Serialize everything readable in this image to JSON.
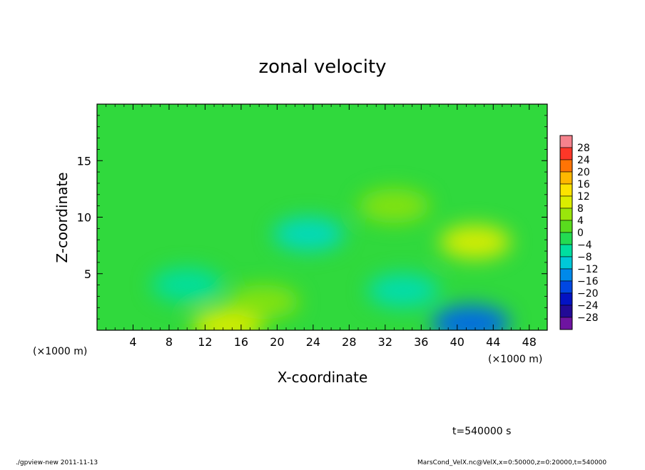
{
  "chart_data": {
    "type": "heatmap",
    "title": "zonal velocity",
    "xlabel": "X-coordinate",
    "ylabel": "Z-coordinate",
    "x_unit": "(×1000 m)",
    "y_unit": "(×1000 m)",
    "xlim": [
      0,
      50
    ],
    "ylim": [
      0,
      20
    ],
    "x_ticks": [
      "4",
      "8",
      "12",
      "16",
      "20",
      "24",
      "28",
      "32",
      "36",
      "40",
      "44",
      "48"
    ],
    "y_ticks": [
      "5",
      "10",
      "15"
    ],
    "colorbar_labels": [
      "28",
      "24",
      "20",
      "16",
      "12",
      "8",
      "4",
      "0",
      "−4",
      "−8",
      "−12",
      "−16",
      "−20",
      "−24",
      "−28"
    ],
    "color_range": [
      -30,
      30
    ],
    "background_value": -1,
    "features": [
      {
        "x": 14.5,
        "z": 0.4,
        "value": 10
      },
      {
        "x": 41.5,
        "z": 0.6,
        "value": -16
      },
      {
        "x": 42.0,
        "z": 7.8,
        "value": 10
      },
      {
        "x": 23.5,
        "z": 8.5,
        "value": -8
      },
      {
        "x": 18.5,
        "z": 2.5,
        "value": 5
      },
      {
        "x": 33.0,
        "z": 11.0,
        "value": 5
      },
      {
        "x": 34.0,
        "z": 3.5,
        "value": -7
      },
      {
        "x": 10.0,
        "z": 4.0,
        "value": -6
      }
    ]
  },
  "annotations": {
    "time": "t=540000 s",
    "footer_left": "./gpview-new  2011-11-13",
    "footer_right": "MarsCond_VelX.nc@VelX,x=0:50000,z=0:20000,t=540000"
  }
}
